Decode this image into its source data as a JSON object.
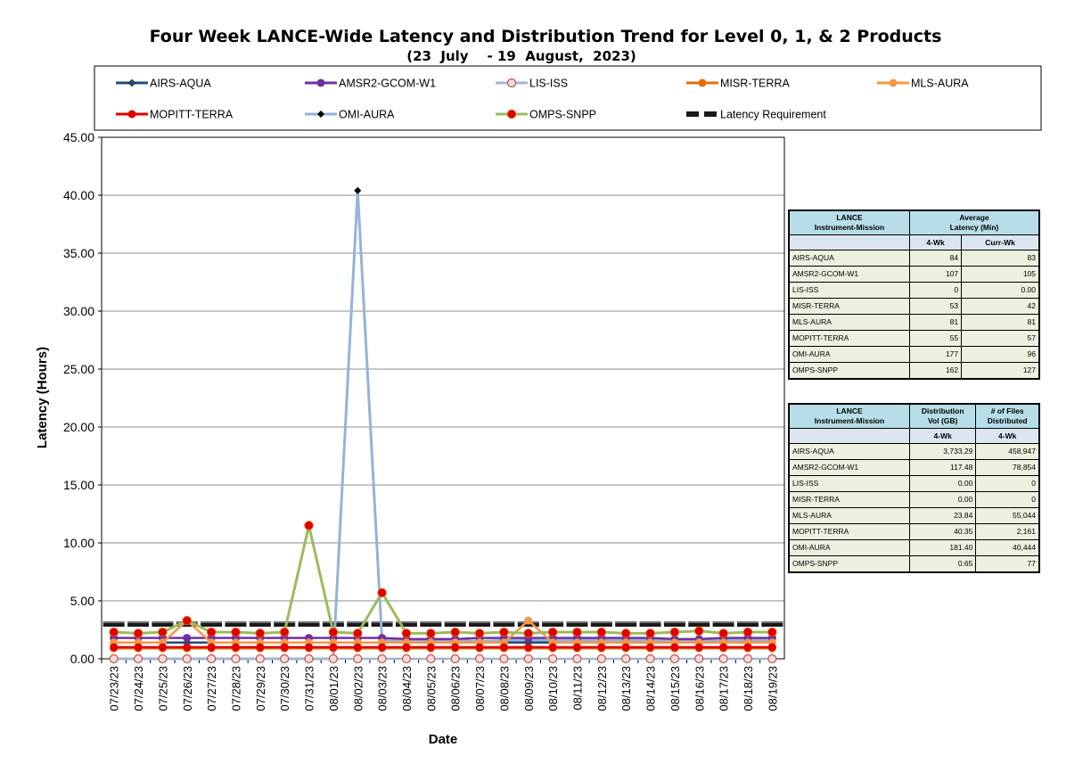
{
  "chart_data": {
    "type": "line",
    "title": "Four Week LANCE-Wide Latency and Distribution Trend for Level 0, 1, & 2 Products",
    "subtitle": "(23  July    - 19  August,  2023)",
    "xlabel": "Date",
    "ylabel": "Latency (Hours)",
    "ylim": [
      0,
      45
    ],
    "yticks": [
      "0.00",
      "5.00",
      "10.00",
      "15.00",
      "20.00",
      "25.00",
      "30.00",
      "35.00",
      "40.00",
      "45.00"
    ],
    "grid": true,
    "legend_placement": "top",
    "x": [
      "07/23/23",
      "07/24/23",
      "07/25/23",
      "07/26/23",
      "07/27/23",
      "07/28/23",
      "07/29/23",
      "07/30/23",
      "07/31/23",
      "08/01/23",
      "08/02/23",
      "08/03/23",
      "08/04/23",
      "08/05/23",
      "08/06/23",
      "08/07/23",
      "08/08/23",
      "08/09/23",
      "08/10/23",
      "08/11/23",
      "08/12/23",
      "08/13/23",
      "08/14/23",
      "08/15/23",
      "08/16/23",
      "08/17/23",
      "08/18/23",
      "08/19/23"
    ],
    "series": [
      {
        "name": "AIRS-AQUA",
        "color": "#1f4e79",
        "marker": "diamond",
        "values": [
          1.4,
          1.4,
          1.4,
          1.4,
          1.4,
          1.4,
          1.4,
          1.4,
          1.4,
          1.4,
          1.4,
          1.4,
          1.4,
          1.4,
          1.4,
          1.4,
          1.4,
          1.4,
          1.4,
          1.4,
          1.4,
          1.4,
          1.4,
          1.4,
          1.4,
          1.4,
          1.4,
          1.4
        ]
      },
      {
        "name": "AMSR2-GCOM-W1",
        "color": "#7030a0",
        "marker": "circle",
        "values": [
          1.8,
          1.8,
          1.8,
          1.8,
          1.8,
          1.8,
          1.8,
          1.8,
          1.8,
          1.8,
          1.8,
          1.8,
          1.7,
          1.7,
          1.7,
          1.8,
          1.8,
          1.8,
          1.8,
          1.8,
          1.8,
          1.8,
          1.8,
          1.7,
          1.7,
          1.8,
          1.8,
          1.8
        ]
      },
      {
        "name": "LIS-ISS",
        "color": "#a6b6d0",
        "marker": "circle-hollow",
        "values": [
          0,
          0,
          0,
          0,
          0,
          0,
          0,
          0,
          0,
          0,
          0,
          0,
          0,
          0,
          0,
          0,
          0,
          0,
          0,
          0,
          0,
          0,
          0,
          0,
          0,
          0,
          0,
          0
        ]
      },
      {
        "name": "MISR-TERRA",
        "color": "#e46c0a",
        "marker": "circle",
        "values": [
          0.9,
          0.9,
          0.9,
          0.9,
          0.9,
          0.9,
          0.9,
          0.9,
          0.9,
          0.9,
          0.9,
          0.9,
          0.9,
          0.9,
          0.9,
          0.9,
          0.9,
          0.9,
          0.9,
          0.9,
          0.9,
          0.9,
          0.9,
          0.9,
          0.9,
          0.9,
          0.9,
          0.9
        ]
      },
      {
        "name": "MLS-AURA",
        "color": "#f79646",
        "marker": "circle",
        "values": [
          1.4,
          1.4,
          1.4,
          3.3,
          1.4,
          1.4,
          1.4,
          1.4,
          1.4,
          1.4,
          1.4,
          1.4,
          1.4,
          1.4,
          1.4,
          1.4,
          1.4,
          3.3,
          1.4,
          1.4,
          1.4,
          1.4,
          1.4,
          1.4,
          1.4,
          1.4,
          1.4,
          1.4
        ]
      },
      {
        "name": "MOPITT-TERRA",
        "color": "#e00000",
        "marker": "circle",
        "values": [
          1.0,
          1.0,
          1.0,
          1.0,
          1.0,
          1.0,
          1.0,
          1.0,
          1.0,
          1.0,
          1.0,
          1.0,
          1.0,
          1.0,
          1.0,
          1.0,
          1.0,
          1.0,
          1.0,
          1.0,
          1.0,
          1.0,
          1.0,
          1.0,
          1.0,
          1.0,
          1.0,
          1.0
        ]
      },
      {
        "name": "OMI-AURA",
        "color": "#95b3d7",
        "marker": "diamond-small",
        "values": [
          0,
          0,
          0,
          0,
          0,
          0,
          0,
          0,
          0,
          0,
          40.4,
          1.6,
          1.5,
          1.5,
          1.6,
          1.5,
          1.6,
          1.6,
          1.6,
          1.6,
          1.6,
          1.6,
          1.6,
          1.6,
          1.6,
          1.6,
          1.6,
          1.6
        ]
      },
      {
        "name": "OMPS-SNPP",
        "color": "#9bbb59",
        "marker": "circle-red",
        "values": [
          2.3,
          2.2,
          2.3,
          3.3,
          2.3,
          2.3,
          2.2,
          2.3,
          11.5,
          2.3,
          2.2,
          5.7,
          2.2,
          2.2,
          2.3,
          2.2,
          2.3,
          2.2,
          2.3,
          2.3,
          2.3,
          2.2,
          2.2,
          2.3,
          2.4,
          2.2,
          2.3,
          2.3
        ]
      },
      {
        "name": "Latency Requirement",
        "color": "#1f2a44",
        "marker": "dash",
        "values": [
          3.0,
          3.0,
          3.0,
          3.0,
          3.0,
          3.0,
          3.0,
          3.0,
          3.0,
          3.0,
          3.0,
          3.0,
          3.0,
          3.0,
          3.0,
          3.0,
          3.0,
          3.0,
          3.0,
          3.0,
          3.0,
          3.0,
          3.0,
          3.0,
          3.0,
          3.0,
          3.0,
          3.0
        ]
      }
    ]
  },
  "table1": {
    "head": [
      "LANCE",
      "Instrument-Mission",
      "Average",
      "Latency (Min)",
      "4-Wk",
      "Curr-Wk"
    ],
    "rows": [
      [
        "AIRS-AQUA",
        "84",
        "83"
      ],
      [
        "AMSR2-GCOM-W1",
        "107",
        "105"
      ],
      [
        "LIS-ISS",
        "0",
        "0.00"
      ],
      [
        "MISR-TERRA",
        "53",
        "42"
      ],
      [
        "MLS-AURA",
        "81",
        "81"
      ],
      [
        "MOPITT-TERRA",
        "55",
        "57"
      ],
      [
        "OMI-AURA",
        "177",
        "96"
      ],
      [
        "OMPS-SNPP",
        "162",
        "127"
      ]
    ]
  },
  "table2": {
    "head": [
      "LANCE",
      "Instrument-Mission",
      "Distribution",
      "Vol (GB)",
      "# of Files",
      "Distributed",
      "4-Wk",
      "4-Wk"
    ],
    "rows": [
      [
        "AIRS-AQUA",
        "3,733.29",
        "458,947"
      ],
      [
        "AMSR2-GCOM-W1",
        "117.48",
        "78,854"
      ],
      [
        "LIS-ISS",
        "0.00",
        "0"
      ],
      [
        "MISR-TERRA",
        "0.00",
        "0"
      ],
      [
        "MLS-AURA",
        "23.84",
        "55,044"
      ],
      [
        "MOPITT-TERRA",
        "40.35",
        "2,161"
      ],
      [
        "OMI-AURA",
        "181.40",
        "40,444"
      ],
      [
        "OMPS-SNPP",
        "0.65",
        "77"
      ]
    ]
  }
}
